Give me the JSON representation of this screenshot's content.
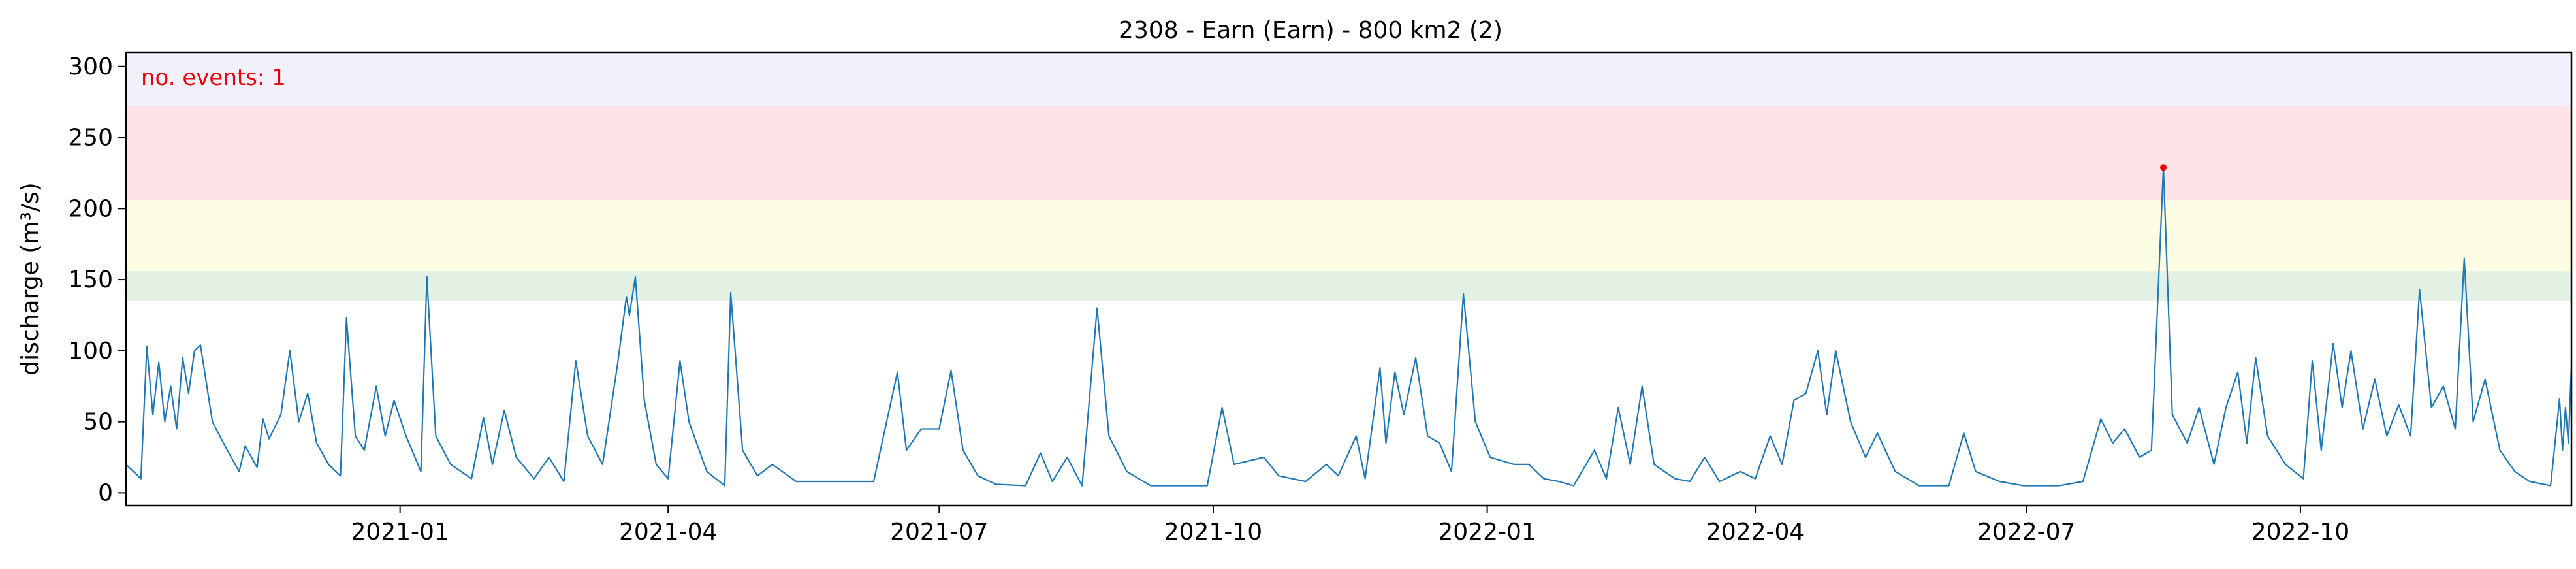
{
  "chart_data": {
    "type": "line",
    "title": "2308 - Earn (Earn) - 800 km2 (2)",
    "ylabel": "discharge (m³/s)",
    "xlabel": "",
    "ylim": [
      -9,
      310
    ],
    "xlim": [
      "2020-10-01",
      "2022-12-31"
    ],
    "yticks": [
      0,
      50,
      100,
      150,
      200,
      250,
      300
    ],
    "xticks": [
      {
        "date": "2021-01-01",
        "label": "2021-01"
      },
      {
        "date": "2021-04-01",
        "label": "2021-04"
      },
      {
        "date": "2021-07-01",
        "label": "2021-07"
      },
      {
        "date": "2021-10-01",
        "label": "2021-10"
      },
      {
        "date": "2022-01-01",
        "label": "2022-01"
      },
      {
        "date": "2022-04-01",
        "label": "2022-04"
      },
      {
        "date": "2022-07-01",
        "label": "2022-07"
      },
      {
        "date": "2022-10-01",
        "label": "2022-10"
      }
    ],
    "bands": [
      {
        "from": 135,
        "to": 156,
        "color": "#e3f1e4"
      },
      {
        "from": 156,
        "to": 206,
        "color": "#fdfde3"
      },
      {
        "from": 206,
        "to": 272,
        "color": "#fde3e5"
      },
      {
        "from": 272,
        "to": 310,
        "color": "#f2f0fb"
      }
    ],
    "annotation": {
      "text": "no. events: 1",
      "color": "#e8000b"
    },
    "events": [
      {
        "date": "2022-08-16",
        "value": 229
      }
    ],
    "series": [
      {
        "color": "#1f77b4",
        "points": [
          [
            "2020-10-01",
            20
          ],
          [
            "2020-10-06",
            10
          ],
          [
            "2020-10-08",
            103
          ],
          [
            "2020-10-10",
            55
          ],
          [
            "2020-10-12",
            92
          ],
          [
            "2020-10-14",
            50
          ],
          [
            "2020-10-16",
            75
          ],
          [
            "2020-10-18",
            45
          ],
          [
            "2020-10-20",
            95
          ],
          [
            "2020-10-22",
            70
          ],
          [
            "2020-10-24",
            100
          ],
          [
            "2020-10-26",
            104
          ],
          [
            "2020-10-30",
            50
          ],
          [
            "2020-11-04",
            30
          ],
          [
            "2020-11-08",
            15
          ],
          [
            "2020-11-10",
            33
          ],
          [
            "2020-11-14",
            18
          ],
          [
            "2020-11-16",
            52
          ],
          [
            "2020-11-18",
            38
          ],
          [
            "2020-11-22",
            55
          ],
          [
            "2020-11-25",
            100
          ],
          [
            "2020-11-28",
            50
          ],
          [
            "2020-12-01",
            70
          ],
          [
            "2020-12-04",
            35
          ],
          [
            "2020-12-08",
            20
          ],
          [
            "2020-12-12",
            12
          ],
          [
            "2020-12-14",
            123
          ],
          [
            "2020-12-17",
            40
          ],
          [
            "2020-12-20",
            30
          ],
          [
            "2020-12-24",
            75
          ],
          [
            "2020-12-27",
            40
          ],
          [
            "2020-12-30",
            65
          ],
          [
            "2021-01-03",
            40
          ],
          [
            "2021-01-08",
            15
          ],
          [
            "2021-01-10",
            152
          ],
          [
            "2021-01-13",
            40
          ],
          [
            "2021-01-18",
            20
          ],
          [
            "2021-01-25",
            10
          ],
          [
            "2021-01-29",
            53
          ],
          [
            "2021-02-01",
            20
          ],
          [
            "2021-02-05",
            58
          ],
          [
            "2021-02-09",
            25
          ],
          [
            "2021-02-15",
            10
          ],
          [
            "2021-02-20",
            25
          ],
          [
            "2021-02-25",
            8
          ],
          [
            "2021-03-01",
            93
          ],
          [
            "2021-03-05",
            40
          ],
          [
            "2021-03-10",
            20
          ],
          [
            "2021-03-15",
            90
          ],
          [
            "2021-03-18",
            138
          ],
          [
            "2021-03-19",
            125
          ],
          [
            "2021-03-21",
            152
          ],
          [
            "2021-03-24",
            65
          ],
          [
            "2021-03-28",
            20
          ],
          [
            "2021-04-01",
            10
          ],
          [
            "2021-04-05",
            93
          ],
          [
            "2021-04-08",
            50
          ],
          [
            "2021-04-14",
            15
          ],
          [
            "2021-04-20",
            5
          ],
          [
            "2021-04-22",
            141
          ],
          [
            "2021-04-26",
            30
          ],
          [
            "2021-05-01",
            12
          ],
          [
            "2021-05-06",
            20
          ],
          [
            "2021-05-14",
            8
          ],
          [
            "2021-05-22",
            8
          ],
          [
            "2021-05-31",
            8
          ],
          [
            "2021-06-09",
            8
          ],
          [
            "2021-06-17",
            85
          ],
          [
            "2021-06-20",
            30
          ],
          [
            "2021-06-25",
            45
          ],
          [
            "2021-07-01",
            45
          ],
          [
            "2021-07-05",
            86
          ],
          [
            "2021-07-09",
            30
          ],
          [
            "2021-07-14",
            12
          ],
          [
            "2021-07-20",
            6
          ],
          [
            "2021-07-30",
            5
          ],
          [
            "2021-08-04",
            28
          ],
          [
            "2021-08-08",
            8
          ],
          [
            "2021-08-13",
            25
          ],
          [
            "2021-08-18",
            5
          ],
          [
            "2021-08-23",
            130
          ],
          [
            "2021-08-27",
            40
          ],
          [
            "2021-09-02",
            15
          ],
          [
            "2021-09-10",
            5
          ],
          [
            "2021-09-20",
            5
          ],
          [
            "2021-09-29",
            5
          ],
          [
            "2021-10-04",
            60
          ],
          [
            "2021-10-08",
            20
          ],
          [
            "2021-10-18",
            25
          ],
          [
            "2021-10-23",
            12
          ],
          [
            "2021-11-01",
            8
          ],
          [
            "2021-11-08",
            20
          ],
          [
            "2021-11-12",
            12
          ],
          [
            "2021-11-18",
            40
          ],
          [
            "2021-11-21",
            10
          ],
          [
            "2021-11-26",
            88
          ],
          [
            "2021-11-28",
            35
          ],
          [
            "2021-12-01",
            85
          ],
          [
            "2021-12-04",
            55
          ],
          [
            "2021-12-08",
            95
          ],
          [
            "2021-12-12",
            40
          ],
          [
            "2021-12-16",
            35
          ],
          [
            "2021-12-20",
            15
          ],
          [
            "2021-12-24",
            140
          ],
          [
            "2021-12-28",
            50
          ],
          [
            "2022-01-02",
            25
          ],
          [
            "2022-01-10",
            20
          ],
          [
            "2022-01-15",
            20
          ],
          [
            "2022-01-20",
            10
          ],
          [
            "2022-01-25",
            8
          ],
          [
            "2022-01-30",
            5
          ],
          [
            "2022-02-06",
            30
          ],
          [
            "2022-02-10",
            10
          ],
          [
            "2022-02-14",
            60
          ],
          [
            "2022-02-18",
            20
          ],
          [
            "2022-02-22",
            75
          ],
          [
            "2022-02-26",
            20
          ],
          [
            "2022-03-05",
            10
          ],
          [
            "2022-03-10",
            8
          ],
          [
            "2022-03-15",
            25
          ],
          [
            "2022-03-20",
            8
          ],
          [
            "2022-03-27",
            15
          ],
          [
            "2022-04-01",
            10
          ],
          [
            "2022-04-06",
            40
          ],
          [
            "2022-04-10",
            20
          ],
          [
            "2022-04-14",
            65
          ],
          [
            "2022-04-18",
            70
          ],
          [
            "2022-04-22",
            100
          ],
          [
            "2022-04-25",
            55
          ],
          [
            "2022-04-28",
            100
          ],
          [
            "2022-05-03",
            50
          ],
          [
            "2022-05-08",
            25
          ],
          [
            "2022-05-12",
            42
          ],
          [
            "2022-05-18",
            15
          ],
          [
            "2022-05-26",
            5
          ],
          [
            "2022-06-05",
            5
          ],
          [
            "2022-06-10",
            42
          ],
          [
            "2022-06-14",
            15
          ],
          [
            "2022-06-22",
            8
          ],
          [
            "2022-06-30",
            5
          ],
          [
            "2022-07-04",
            5
          ],
          [
            "2022-07-12",
            5
          ],
          [
            "2022-07-20",
            8
          ],
          [
            "2022-07-26",
            52
          ],
          [
            "2022-07-30",
            35
          ],
          [
            "2022-08-03",
            45
          ],
          [
            "2022-08-08",
            25
          ],
          [
            "2022-08-12",
            30
          ],
          [
            "2022-08-16",
            229
          ],
          [
            "2022-08-19",
            55
          ],
          [
            "2022-08-24",
            35
          ],
          [
            "2022-08-28",
            60
          ],
          [
            "2022-09-02",
            20
          ],
          [
            "2022-09-06",
            60
          ],
          [
            "2022-09-10",
            85
          ],
          [
            "2022-09-13",
            35
          ],
          [
            "2022-09-16",
            95
          ],
          [
            "2022-09-20",
            40
          ],
          [
            "2022-09-26",
            20
          ],
          [
            "2022-10-02",
            10
          ],
          [
            "2022-10-05",
            93
          ],
          [
            "2022-10-08",
            30
          ],
          [
            "2022-10-12",
            105
          ],
          [
            "2022-10-15",
            60
          ],
          [
            "2022-10-18",
            100
          ],
          [
            "2022-10-22",
            45
          ],
          [
            "2022-10-26",
            80
          ],
          [
            "2022-10-30",
            40
          ],
          [
            "2022-11-03",
            62
          ],
          [
            "2022-11-07",
            40
          ],
          [
            "2022-11-10",
            143
          ],
          [
            "2022-11-14",
            60
          ],
          [
            "2022-11-18",
            75
          ],
          [
            "2022-11-22",
            45
          ],
          [
            "2022-11-25",
            165
          ],
          [
            "2022-11-28",
            50
          ],
          [
            "2022-12-02",
            80
          ],
          [
            "2022-12-07",
            30
          ],
          [
            "2022-12-12",
            15
          ],
          [
            "2022-12-17",
            8
          ],
          [
            "2022-12-24",
            5
          ],
          [
            "2022-12-27",
            66
          ],
          [
            "2022-12-28",
            30
          ],
          [
            "2022-12-29",
            60
          ],
          [
            "2022-12-30",
            35
          ],
          [
            "2022-12-31",
            90
          ]
        ]
      }
    ]
  }
}
